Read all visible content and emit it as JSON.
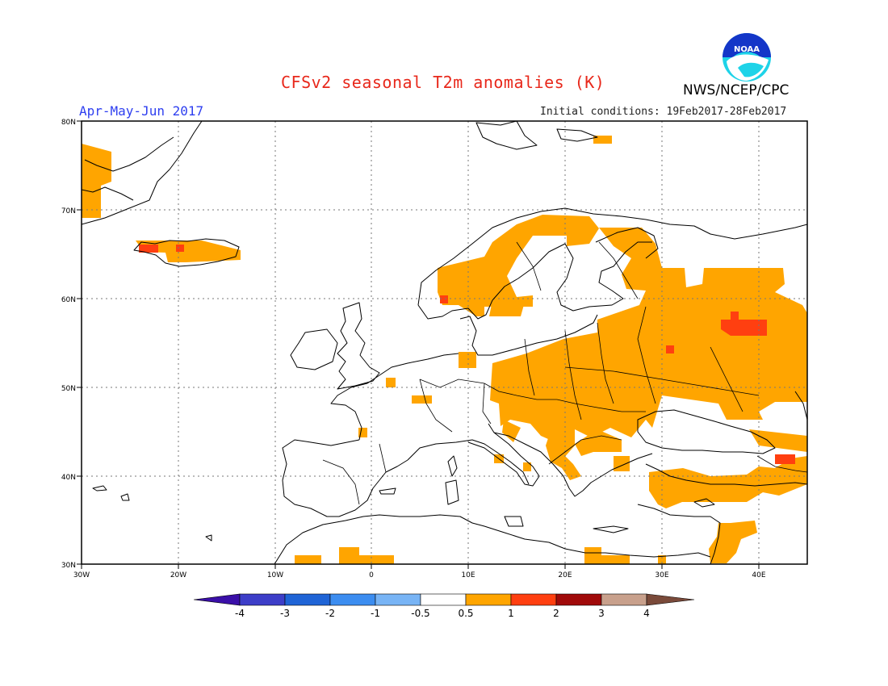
{
  "header": {
    "title": "CFSv2 seasonal T2m anomalies (K)",
    "agency": "NWS/NCEP/CPC",
    "logo_text": "NOAA",
    "season": "Apr-May-Jun 2017",
    "initial_conditions": "Initial conditions: 19Feb2017-28Feb2017"
  },
  "map": {
    "projection": "lat-lon",
    "lon_range": [
      -30,
      45
    ],
    "lat_range": [
      30,
      80
    ],
    "lon_ticks": [
      "30W",
      "20W",
      "10W",
      "0",
      "10E",
      "20E",
      "30E",
      "40E"
    ],
    "lat_ticks": [
      "30N",
      "40N",
      "50N",
      "60N",
      "70N",
      "80N"
    ],
    "gridlines": "dotted",
    "colors": {
      "land_outline": "#000000",
      "anomaly_0_5_to_1": "#ffa500",
      "anomaly_1_to_2": "#ff3f10"
    },
    "anomaly_regions": [
      {
        "region": "Greenland",
        "category": "0.5 to 1"
      },
      {
        "region": "Iceland",
        "category": "0.5 to 1"
      },
      {
        "region": "Iceland west",
        "category": "1 to 2"
      },
      {
        "region": "Norway",
        "category": "0.5 to 1"
      },
      {
        "region": "Sweden",
        "category": "0.5 to 1"
      },
      {
        "region": "Finland and NW Russia",
        "category": "0.5 to 1"
      },
      {
        "region": "Central and Eastern Europe",
        "category": "0.5 to 1"
      },
      {
        "region": "Balkans",
        "category": "0.5 to 1"
      },
      {
        "region": "Western Russia",
        "category": "0.5 to 1"
      },
      {
        "region": "Western Russia core",
        "category": "1 to 2"
      },
      {
        "region": "Belarus spot",
        "category": "1 to 2"
      },
      {
        "region": "Turkey",
        "category": "0.5 to 1"
      },
      {
        "region": "Caucasus",
        "category": "1 to 2"
      },
      {
        "region": "Levant",
        "category": "0.5 to 1"
      },
      {
        "region": "North Africa coast",
        "category": "0.5 to 1"
      },
      {
        "region": "Svalbard",
        "category": "0.5 to 1"
      }
    ]
  },
  "colorbar": {
    "labels": [
      "-4",
      "-3",
      "-2",
      "-1",
      "-0.5",
      "0.5",
      "1",
      "2",
      "3",
      "4"
    ],
    "colors": [
      "#3a0fa8",
      "#3d3ec8",
      "#1f64d6",
      "#3c8df0",
      "#78b4f5",
      "#ffffff",
      "#ffa500",
      "#ff3f10",
      "#a00a0a",
      "#c8a08c",
      "#7a4a3a"
    ]
  }
}
